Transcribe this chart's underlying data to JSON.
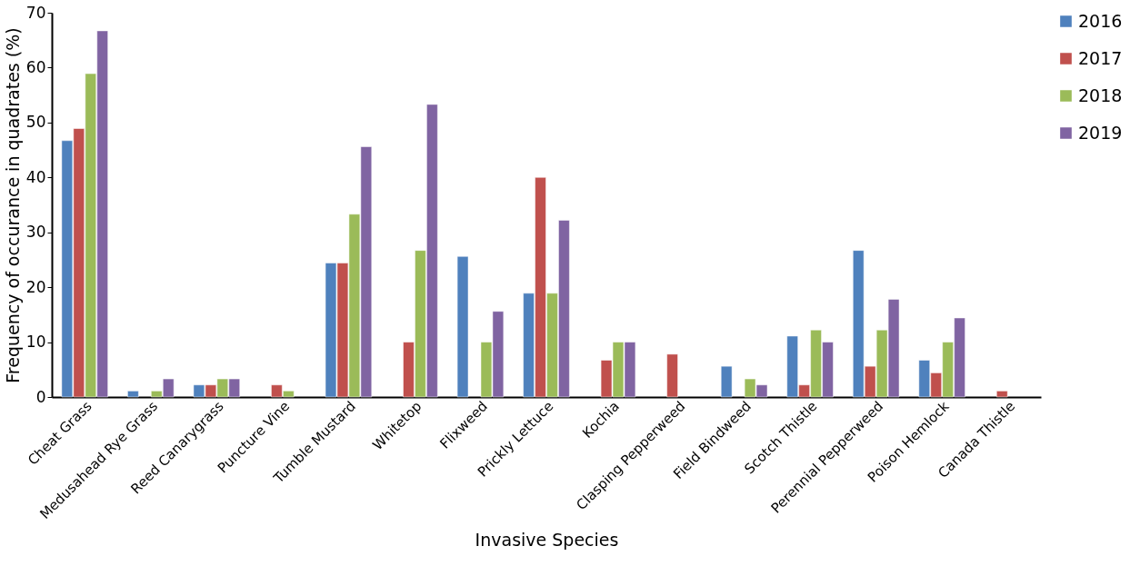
{
  "chart_data": {
    "type": "bar",
    "xlabel": "Invasive Species",
    "ylabel": "Frequency  of occurance in quadrates (%)",
    "categories": [
      "Cheat Grass",
      "Medusahead Rye Grass",
      "Reed Canarygrass",
      "Puncture Vine",
      "Tumble Mustard",
      "Whitetop",
      "Flixweed",
      "Prickly Lettuce",
      "Kochia",
      "Clasping Pepperweed",
      "Field Bindweed",
      "Scotch Thistle",
      "Perennial Pepperweed",
      "Poison Hemlock",
      "Canada Thistle"
    ],
    "series": [
      {
        "name": "2016",
        "color": "#4f81bd",
        "values": [
          46.7,
          1.1,
          2.2,
          null,
          24.4,
          null,
          25.6,
          18.9,
          null,
          null,
          5.6,
          11.1,
          26.7,
          6.7,
          null
        ]
      },
      {
        "name": "2017",
        "color": "#c0504d",
        "values": [
          48.9,
          null,
          2.2,
          2.2,
          24.4,
          10,
          null,
          40,
          6.7,
          7.8,
          null,
          2.2,
          5.6,
          4.4,
          1.1
        ]
      },
      {
        "name": "2018",
        "color": "#9bbb59",
        "values": [
          58.9,
          1.1,
          3.3,
          1.1,
          33.3,
          26.7,
          10,
          18.9,
          10,
          null,
          3.3,
          12.2,
          12.2,
          10,
          null
        ]
      },
      {
        "name": "2019",
        "color": "#8064a2",
        "values": [
          66.7,
          3.3,
          3.3,
          null,
          45.6,
          53.3,
          15.6,
          32.2,
          10,
          null,
          2.2,
          10,
          17.8,
          14.4,
          null
        ]
      }
    ],
    "ylim": [
      0,
      70
    ],
    "yticks": [
      0,
      10,
      20,
      30,
      40,
      50,
      60,
      70
    ],
    "grid": false,
    "legend": "top right"
  }
}
